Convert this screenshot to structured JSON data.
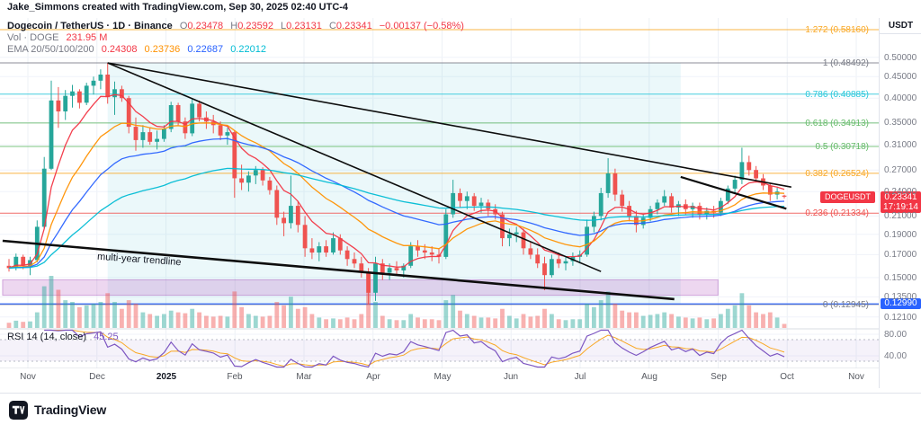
{
  "attribution": "Jake_Simmons created with TradingView.com, Sep 30, 2025 02:40 UTC-4",
  "header": {
    "symbol_title": "Dogecoin / TetherUS · 1D · Binance",
    "o_label": "O",
    "o": "0.23478",
    "h_label": "H",
    "h": "0.23592",
    "l_label": "L",
    "l": "0.23131",
    "c_label": "C",
    "c": "0.23341",
    "change": "−0.00137 (−0.58%)"
  },
  "vol_row": {
    "label": "Vol · DOGE",
    "value": "231.95 M"
  },
  "ema_row": {
    "label": "EMA 20/50/100/200",
    "values": [
      {
        "v": "0.24308",
        "color": "#f23645"
      },
      {
        "v": "0.23736",
        "color": "#ff9100"
      },
      {
        "v": "0.22687",
        "color": "#2962ff"
      },
      {
        "v": "0.22012",
        "color": "#00bcd4"
      }
    ]
  },
  "rsi_row": {
    "label": "RSI 14 (14, close)",
    "value": "45.25"
  },
  "price_axis": {
    "currency": "USDT",
    "labels": [
      "0.50000",
      "0.45000",
      "0.40000",
      "0.35000",
      "0.31000",
      "0.27000",
      "0.24000",
      "0.21000",
      "0.19000",
      "0.17000",
      "0.15000",
      "0.13500",
      "0.12100"
    ],
    "values": [
      0.5,
      0.45,
      0.4,
      0.35,
      0.31,
      0.27,
      0.24,
      0.21,
      0.19,
      0.17,
      0.15,
      0.135,
      0.121
    ]
  },
  "rsi_axis": {
    "labels": [
      "80.00",
      "40.00"
    ],
    "values": [
      80,
      40
    ]
  },
  "date_axis": {
    "labels": [
      "Nov",
      "Dec",
      "2025",
      "Feb",
      "Mar",
      "Apr",
      "May",
      "Jun",
      "Jul",
      "Aug",
      "Sep",
      "Oct",
      "Nov"
    ],
    "bold_index": 2
  },
  "badges": {
    "symbol": "DOGEUSDT",
    "price": "0.23341",
    "countdown": "17:19:14",
    "alert_price": "0.12990"
  },
  "annotations": {
    "trendline_label": "multi-year trendline"
  },
  "logo": {
    "text": "TradingView"
  },
  "colors": {
    "up": "#26a69a",
    "down": "#ef5350",
    "accent_red": "#f23645",
    "accent_blue": "#2962ff",
    "rsi_line": "#7e57c2",
    "rsi_signal": "#f9a825"
  },
  "chart_data": {
    "type": "candlestick",
    "title": "Dogecoin / TetherUS",
    "exchange": "Binance",
    "interval": "1D",
    "scale": "log",
    "volume_unit": "M DOGE",
    "start_date": "2024-10-27",
    "candle_interval_days": 3,
    "current": {
      "open": 0.23478,
      "high": 0.23592,
      "low": 0.23131,
      "close": 0.23341,
      "change": -0.00137,
      "change_pct": -0.58,
      "volume_m": 231.95
    },
    "candles": [
      [
        0.16,
        0.166,
        0.155,
        0.158,
        300
      ],
      [
        0.158,
        0.171,
        0.156,
        0.168,
        420
      ],
      [
        0.168,
        0.17,
        0.157,
        0.16,
        350
      ],
      [
        0.16,
        0.168,
        0.152,
        0.165,
        380
      ],
      [
        0.165,
        0.205,
        0.163,
        0.198,
        900
      ],
      [
        0.198,
        0.29,
        0.196,
        0.272,
        2400
      ],
      [
        0.272,
        0.44,
        0.27,
        0.395,
        3000
      ],
      [
        0.395,
        0.425,
        0.34,
        0.372,
        2200
      ],
      [
        0.372,
        0.418,
        0.355,
        0.405,
        1600
      ],
      [
        0.405,
        0.43,
        0.38,
        0.415,
        1500
      ],
      [
        0.415,
        0.42,
        0.378,
        0.39,
        1200
      ],
      [
        0.39,
        0.435,
        0.385,
        0.428,
        1300
      ],
      [
        0.428,
        0.45,
        0.408,
        0.44,
        1400
      ],
      [
        0.44,
        0.468,
        0.42,
        0.455,
        1500
      ],
      [
        0.455,
        0.48492,
        0.388,
        0.402,
        2000
      ],
      [
        0.402,
        0.438,
        0.365,
        0.42,
        1500
      ],
      [
        0.42,
        0.428,
        0.392,
        0.4,
        1100
      ],
      [
        0.4,
        0.405,
        0.33,
        0.342,
        1600
      ],
      [
        0.342,
        0.36,
        0.3,
        0.318,
        1400
      ],
      [
        0.318,
        0.345,
        0.305,
        0.332,
        900
      ],
      [
        0.332,
        0.34,
        0.31,
        0.315,
        800
      ],
      [
        0.315,
        0.335,
        0.302,
        0.32,
        700
      ],
      [
        0.32,
        0.345,
        0.315,
        0.338,
        800
      ],
      [
        0.338,
        0.392,
        0.332,
        0.385,
        1000
      ],
      [
        0.385,
        0.39,
        0.345,
        0.352,
        900
      ],
      [
        0.352,
        0.36,
        0.32,
        0.33,
        850
      ],
      [
        0.33,
        0.398,
        0.325,
        0.388,
        1100
      ],
      [
        0.388,
        0.395,
        0.352,
        0.36,
        900
      ],
      [
        0.36,
        0.372,
        0.338,
        0.352,
        700
      ],
      [
        0.352,
        0.365,
        0.33,
        0.345,
        650
      ],
      [
        0.345,
        0.352,
        0.318,
        0.326,
        700
      ],
      [
        0.326,
        0.34,
        0.31,
        0.332,
        650
      ],
      [
        0.332,
        0.335,
        0.232,
        0.258,
        2100
      ],
      [
        0.258,
        0.278,
        0.242,
        0.252,
        1200
      ],
      [
        0.252,
        0.268,
        0.24,
        0.262,
        800
      ],
      [
        0.262,
        0.276,
        0.25,
        0.27,
        700
      ],
      [
        0.27,
        0.274,
        0.248,
        0.255,
        650
      ],
      [
        0.255,
        0.26,
        0.236,
        0.242,
        700
      ],
      [
        0.242,
        0.248,
        0.2,
        0.208,
        1500
      ],
      [
        0.208,
        0.215,
        0.188,
        0.202,
        1300
      ],
      [
        0.202,
        0.262,
        0.196,
        0.222,
        1800
      ],
      [
        0.222,
        0.228,
        0.192,
        0.2,
        1100
      ],
      [
        0.2,
        0.21,
        0.168,
        0.176,
        1200
      ],
      [
        0.176,
        0.186,
        0.166,
        0.172,
        800
      ],
      [
        0.172,
        0.182,
        0.164,
        0.178,
        600
      ],
      [
        0.178,
        0.184,
        0.168,
        0.172,
        500
      ],
      [
        0.172,
        0.192,
        0.17,
        0.186,
        550
      ],
      [
        0.186,
        0.19,
        0.17,
        0.174,
        500
      ],
      [
        0.174,
        0.178,
        0.16,
        0.166,
        600
      ],
      [
        0.166,
        0.172,
        0.158,
        0.162,
        500
      ],
      [
        0.162,
        0.168,
        0.15,
        0.155,
        800
      ],
      [
        0.155,
        0.158,
        0.1295,
        0.138,
        2000
      ],
      [
        0.138,
        0.168,
        0.132,
        0.162,
        1500
      ],
      [
        0.162,
        0.166,
        0.148,
        0.154,
        700
      ],
      [
        0.154,
        0.162,
        0.148,
        0.158,
        500
      ],
      [
        0.158,
        0.164,
        0.152,
        0.156,
        450
      ],
      [
        0.156,
        0.162,
        0.15,
        0.16,
        450
      ],
      [
        0.16,
        0.182,
        0.158,
        0.178,
        800
      ],
      [
        0.178,
        0.184,
        0.168,
        0.174,
        600
      ],
      [
        0.174,
        0.18,
        0.166,
        0.172,
        500
      ],
      [
        0.172,
        0.178,
        0.164,
        0.17,
        500
      ],
      [
        0.17,
        0.176,
        0.162,
        0.168,
        450
      ],
      [
        0.168,
        0.218,
        0.166,
        0.212,
        1600
      ],
      [
        0.212,
        0.256,
        0.208,
        0.238,
        1900
      ],
      [
        0.238,
        0.244,
        0.22,
        0.228,
        1000
      ],
      [
        0.228,
        0.24,
        0.218,
        0.234,
        800
      ],
      [
        0.234,
        0.238,
        0.216,
        0.222,
        700
      ],
      [
        0.222,
        0.232,
        0.214,
        0.226,
        600
      ],
      [
        0.226,
        0.23,
        0.21,
        0.218,
        600
      ],
      [
        0.218,
        0.224,
        0.206,
        0.212,
        550
      ],
      [
        0.212,
        0.215,
        0.178,
        0.186,
        1100
      ],
      [
        0.186,
        0.196,
        0.178,
        0.19,
        700
      ],
      [
        0.19,
        0.198,
        0.182,
        0.192,
        550
      ],
      [
        0.192,
        0.196,
        0.17,
        0.176,
        800
      ],
      [
        0.176,
        0.182,
        0.166,
        0.17,
        650
      ],
      [
        0.17,
        0.176,
        0.158,
        0.162,
        700
      ],
      [
        0.162,
        0.168,
        0.14,
        0.152,
        1100
      ],
      [
        0.152,
        0.17,
        0.15,
        0.166,
        800
      ],
      [
        0.166,
        0.172,
        0.158,
        0.162,
        500
      ],
      [
        0.162,
        0.168,
        0.156,
        0.164,
        450
      ],
      [
        0.164,
        0.172,
        0.16,
        0.168,
        500
      ],
      [
        0.168,
        0.174,
        0.162,
        0.17,
        500
      ],
      [
        0.17,
        0.206,
        0.168,
        0.198,
        1400
      ],
      [
        0.198,
        0.215,
        0.192,
        0.21,
        1200
      ],
      [
        0.21,
        0.245,
        0.205,
        0.238,
        1600
      ],
      [
        0.238,
        0.288,
        0.232,
        0.265,
        2100
      ],
      [
        0.265,
        0.272,
        0.228,
        0.236,
        1400
      ],
      [
        0.236,
        0.242,
        0.215,
        0.222,
        1000
      ],
      [
        0.222,
        0.228,
        0.204,
        0.21,
        900
      ],
      [
        0.21,
        0.216,
        0.192,
        0.2,
        900
      ],
      [
        0.2,
        0.212,
        0.196,
        0.208,
        700
      ],
      [
        0.208,
        0.222,
        0.204,
        0.218,
        750
      ],
      [
        0.218,
        0.23,
        0.212,
        0.226,
        800
      ],
      [
        0.226,
        0.242,
        0.222,
        0.234,
        900
      ],
      [
        0.234,
        0.238,
        0.214,
        0.22,
        800
      ],
      [
        0.22,
        0.228,
        0.21,
        0.224,
        650
      ],
      [
        0.224,
        0.23,
        0.212,
        0.218,
        600
      ],
      [
        0.218,
        0.226,
        0.208,
        0.222,
        550
      ],
      [
        0.222,
        0.226,
        0.206,
        0.212,
        600
      ],
      [
        0.212,
        0.22,
        0.206,
        0.216,
        500
      ],
      [
        0.216,
        0.222,
        0.208,
        0.214,
        550
      ],
      [
        0.214,
        0.232,
        0.21,
        0.228,
        800
      ],
      [
        0.228,
        0.248,
        0.224,
        0.244,
        1100
      ],
      [
        0.244,
        0.262,
        0.238,
        0.256,
        1300
      ],
      [
        0.256,
        0.305,
        0.25,
        0.282,
        2000
      ],
      [
        0.282,
        0.292,
        0.262,
        0.27,
        1300
      ],
      [
        0.27,
        0.276,
        0.252,
        0.258,
        900
      ],
      [
        0.258,
        0.264,
        0.242,
        0.248,
        800
      ],
      [
        0.248,
        0.252,
        0.228,
        0.236,
        900
      ],
      [
        0.236,
        0.245,
        0.23,
        0.24,
        600
      ],
      [
        0.23478,
        0.23592,
        0.23131,
        0.23341,
        232
      ]
    ],
    "emas": {
      "periods": [
        20,
        50,
        100,
        200
      ],
      "current": [
        0.24308,
        0.23736,
        0.22687,
        0.22012
      ],
      "colors": [
        "#f23645",
        "#ff9100",
        "#2962ff",
        "#00bcd4"
      ],
      "candle_spans": [
        7,
        17,
        33,
        67
      ]
    },
    "rsi": {
      "period": 14,
      "current": 45.25,
      "overbought": 70,
      "oversold": 30,
      "candle_span": 5
    },
    "fib_levels": [
      {
        "label": "1.272 (0.58160)",
        "price": 0.5816,
        "color": "#f9a825"
      },
      {
        "label": "1 (0.48492)",
        "price": 0.48492,
        "color": "#787b86"
      },
      {
        "label": "0.786 (0.40885)",
        "price": 0.40885,
        "color": "#26c6da"
      },
      {
        "label": "0.618 (0.34913)",
        "price": 0.34913,
        "color": "#66bb6a"
      },
      {
        "label": "0.5 (0.30718)",
        "price": 0.30718,
        "color": "#66bb6a"
      },
      {
        "label": "0.382 (0.26524)",
        "price": 0.26524,
        "color": "#f9a825"
      },
      {
        "label": "0.236 (0.21334)",
        "price": 0.21334,
        "color": "#ef5350"
      },
      {
        "label": "0 (0.12945)",
        "price": 0.12945,
        "color": "#787b86"
      }
    ],
    "price_line": {
      "price": 0.1299,
      "color": "#2962ff"
    },
    "trendlines": [
      {
        "name": "descending-resistance-long",
        "i1": 14,
        "p1": 0.48492,
        "i2": 111,
        "p2": 0.246,
        "width": 1.6
      },
      {
        "name": "descending-resistance-steep",
        "i1": 14,
        "p1": 0.48492,
        "i2": 84,
        "p2": 0.155,
        "width": 1.6
      },
      {
        "name": "multi-year-trendline",
        "i1": -0.9,
        "p1": 0.1834,
        "i2": 94.4,
        "p2": 0.1333,
        "width": 2.6
      },
      {
        "name": "short-term-descending",
        "i1": 95.3,
        "p1": 0.26,
        "i2": 110.3,
        "p2": 0.2185,
        "width": 2.2
      }
    ],
    "fib_region": {
      "i1": 14,
      "i2": 95.3,
      "p_top": 0.48492,
      "p_bottom": 0.12945
    },
    "highlight_band": {
      "i1": -0.9,
      "i2": 100.6,
      "p_top": 0.1482,
      "p_bottom": 0.1362
    }
  }
}
